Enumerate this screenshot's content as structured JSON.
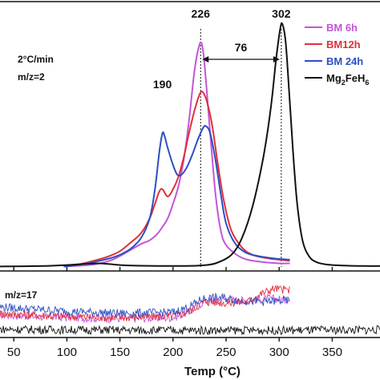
{
  "chart_data": {
    "type": "line",
    "xlabel": "Temp (°C)",
    "xlim": [
      37,
      395
    ],
    "xticks": [
      50,
      100,
      150,
      200,
      250,
      300,
      350
    ],
    "ylabel": "",
    "condition_label": "2°C/min",
    "upper_panel": {
      "mz_label": "m/z=2",
      "ylim": [
        0,
        1.0
      ],
      "series": [
        {
          "name": "BM 6h",
          "color": "#c455d6",
          "points": [
            [
              97,
              0.002
            ],
            [
              110,
              0.005
            ],
            [
              125,
              0.01
            ],
            [
              140,
              0.025
            ],
            [
              150,
              0.045
            ],
            [
              160,
              0.07
            ],
            [
              170,
              0.095
            ],
            [
              178,
              0.11
            ],
            [
              185,
              0.135
            ],
            [
              190,
              0.165
            ],
            [
              195,
              0.2
            ],
            [
              200,
              0.26
            ],
            [
              205,
              0.33
            ],
            [
              210,
              0.44
            ],
            [
              215,
              0.6
            ],
            [
              220,
              0.8
            ],
            [
              224,
              0.9
            ],
            [
              227,
              0.92
            ],
            [
              230,
              0.82
            ],
            [
              235,
              0.55
            ],
            [
              240,
              0.3
            ],
            [
              245,
              0.15
            ],
            [
              250,
              0.09
            ],
            [
              260,
              0.05
            ],
            [
              270,
              0.03
            ],
            [
              285,
              0.02
            ],
            [
              300,
              0.015
            ],
            [
              310,
              0.015
            ]
          ]
        },
        {
          "name": "BM12h",
          "color": "#e0303a",
          "points": [
            [
              97,
              0.005
            ],
            [
              110,
              0.01
            ],
            [
              125,
              0.025
            ],
            [
              140,
              0.045
            ],
            [
              150,
              0.065
            ],
            [
              160,
              0.1
            ],
            [
              170,
              0.14
            ],
            [
              178,
              0.2
            ],
            [
              183,
              0.26
            ],
            [
              187,
              0.31
            ],
            [
              190,
              0.32
            ],
            [
              195,
              0.29
            ],
            [
              200,
              0.32
            ],
            [
              205,
              0.37
            ],
            [
              210,
              0.45
            ],
            [
              215,
              0.55
            ],
            [
              220,
              0.64
            ],
            [
              225,
              0.71
            ],
            [
              228,
              0.72
            ],
            [
              232,
              0.68
            ],
            [
              237,
              0.58
            ],
            [
              242,
              0.43
            ],
            [
              248,
              0.27
            ],
            [
              255,
              0.15
            ],
            [
              265,
              0.08
            ],
            [
              275,
              0.05
            ],
            [
              290,
              0.035
            ],
            [
              300,
              0.03
            ],
            [
              310,
              0.025
            ]
          ]
        },
        {
          "name": "BM 24h",
          "color": "#2b4fc4",
          "points": [
            [
              97,
              0.002
            ],
            [
              110,
              0.008
            ],
            [
              125,
              0.02
            ],
            [
              140,
              0.035
            ],
            [
              150,
              0.05
            ],
            [
              160,
              0.075
            ],
            [
              170,
              0.12
            ],
            [
              178,
              0.2
            ],
            [
              183,
              0.32
            ],
            [
              187,
              0.47
            ],
            [
              190,
              0.55
            ],
            [
              192,
              0.54
            ],
            [
              195,
              0.49
            ],
            [
              200,
              0.42
            ],
            [
              204,
              0.38
            ],
            [
              208,
              0.38
            ],
            [
              213,
              0.41
            ],
            [
              218,
              0.46
            ],
            [
              223,
              0.52
            ],
            [
              228,
              0.57
            ],
            [
              231,
              0.58
            ],
            [
              235,
              0.55
            ],
            [
              240,
              0.44
            ],
            [
              245,
              0.3
            ],
            [
              250,
              0.18
            ],
            [
              258,
              0.1
            ],
            [
              268,
              0.06
            ],
            [
              280,
              0.045
            ],
            [
              295,
              0.035
            ],
            [
              310,
              0.03
            ]
          ]
        },
        {
          "name": "Mg2FeH6",
          "color": "#111111",
          "points": [
            [
              37,
              0.002
            ],
            [
              80,
              0.004
            ],
            [
              100,
              0.008
            ],
            [
              115,
              0.012
            ],
            [
              130,
              0.015
            ],
            [
              140,
              0.012
            ],
            [
              150,
              0.008
            ],
            [
              170,
              0.005
            ],
            [
              200,
              0.004
            ],
            [
              225,
              0.006
            ],
            [
              240,
              0.015
            ],
            [
              255,
              0.05
            ],
            [
              265,
              0.12
            ],
            [
              275,
              0.25
            ],
            [
              285,
              0.45
            ],
            [
              292,
              0.65
            ],
            [
              297,
              0.85
            ],
            [
              301,
              0.98
            ],
            [
              303,
              1.0
            ],
            [
              306,
              0.93
            ],
            [
              309,
              0.75
            ],
            [
              313,
              0.48
            ],
            [
              317,
              0.26
            ],
            [
              322,
              0.11
            ],
            [
              328,
              0.045
            ],
            [
              335,
              0.02
            ],
            [
              345,
              0.01
            ],
            [
              360,
              0.006
            ],
            [
              380,
              0.004
            ],
            [
              395,
              0.004
            ]
          ]
        }
      ]
    },
    "lower_panel": {
      "mz_label": "m/z=17",
      "ylim": [
        0,
        1.0
      ],
      "series": [
        {
          "name": "BM 6h",
          "color": "#c455d6",
          "points": [
            [
              37,
              0.35
            ],
            [
              100,
              0.3
            ],
            [
              150,
              0.28
            ],
            [
              200,
              0.3
            ],
            [
              215,
              0.4
            ],
            [
              230,
              0.62
            ],
            [
              250,
              0.65
            ],
            [
              270,
              0.62
            ],
            [
              290,
              0.66
            ],
            [
              310,
              0.64
            ]
          ]
        },
        {
          "name": "BM12h",
          "color": "#e0303a",
          "points": [
            [
              37,
              0.38
            ],
            [
              100,
              0.32
            ],
            [
              150,
              0.3
            ],
            [
              200,
              0.33
            ],
            [
              215,
              0.42
            ],
            [
              230,
              0.6
            ],
            [
              250,
              0.58
            ],
            [
              270,
              0.6
            ],
            [
              283,
              0.75
            ],
            [
              295,
              0.85
            ],
            [
              310,
              0.82
            ]
          ]
        },
        {
          "name": "BM 24h",
          "color": "#2b4fc4",
          "points": [
            [
              37,
              0.5
            ],
            [
              100,
              0.42
            ],
            [
              150,
              0.38
            ],
            [
              200,
              0.4
            ],
            [
              215,
              0.5
            ],
            [
              228,
              0.66
            ],
            [
              245,
              0.68
            ],
            [
              265,
              0.62
            ],
            [
              285,
              0.6
            ],
            [
              310,
              0.62
            ]
          ]
        },
        {
          "name": "Mg2FeH6",
          "color": "#111111",
          "points": [
            [
              37,
              0.08
            ],
            [
              100,
              0.07
            ],
            [
              200,
              0.06
            ],
            [
              300,
              0.06
            ],
            [
              395,
              0.07
            ]
          ]
        }
      ]
    },
    "peak_labels": [
      {
        "text": "190",
        "x": 190
      },
      {
        "text": "226",
        "x": 226
      },
      {
        "text": "302",
        "x": 302
      }
    ],
    "shift_label": "76",
    "legend": [
      {
        "name": "BM 6h",
        "color": "#c455d6"
      },
      {
        "name": "BM12h",
        "color": "#e0303a"
      },
      {
        "name": "BM 24h",
        "color": "#2b4fc4"
      },
      {
        "name": "Mg2FeH6",
        "color": "#111111"
      }
    ],
    "legend_position": "top-right"
  }
}
